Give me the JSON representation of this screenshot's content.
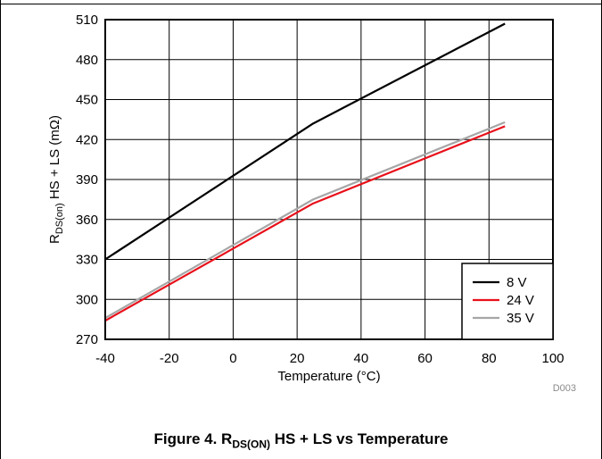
{
  "chart_data": {
    "type": "line",
    "title": "",
    "xlabel": "Temperature (°C)",
    "ylabel": {
      "prefix": "R",
      "sub": "DS(on)",
      "suffix": " HS + LS (mΩ)"
    },
    "xlim": [
      -40,
      100
    ],
    "ylim": [
      270,
      510
    ],
    "xticks": [
      -40,
      -20,
      0,
      20,
      40,
      60,
      80,
      100
    ],
    "yticks": [
      270,
      300,
      330,
      360,
      390,
      420,
      450,
      480,
      510
    ],
    "grid": true,
    "legend_position": "bottom-right",
    "series": [
      {
        "name": "8 V",
        "color": "#000000",
        "x": [
          -40,
          25,
          85
        ],
        "y": [
          330,
          432,
          507
        ]
      },
      {
        "name": "24 V",
        "color": "#e8101a",
        "x": [
          -40,
          25,
          85
        ],
        "y": [
          284,
          372,
          430
        ]
      },
      {
        "name": "35 V",
        "color": "#a6a6a6",
        "x": [
          -40,
          25,
          85
        ],
        "y": [
          286,
          375,
          433
        ]
      }
    ],
    "annotation": "D003"
  },
  "caption": {
    "prefix": "Figure 4. R",
    "sub": "DS(ON)",
    "suffix": " HS + LS vs Temperature"
  }
}
